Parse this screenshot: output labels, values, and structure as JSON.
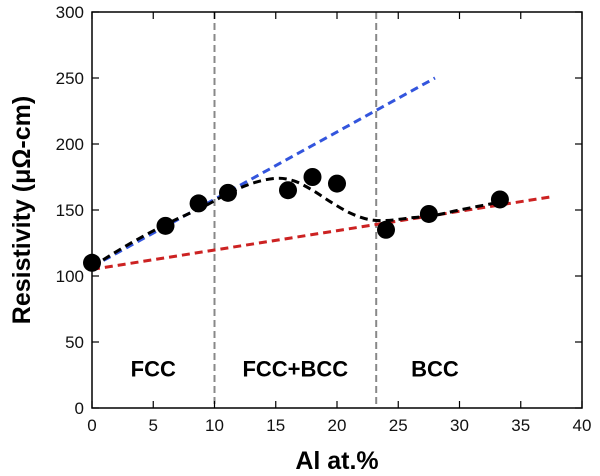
{
  "chart_data": {
    "type": "scatter",
    "title": "",
    "xlabel": "Al at.%",
    "ylabel": "Resistivity (μΩ-cm)",
    "xlim": [
      0,
      40
    ],
    "ylim": [
      0,
      300
    ],
    "xticks": [
      "0",
      "5",
      "10",
      "15",
      "20",
      "25",
      "30",
      "35",
      "40"
    ],
    "yticks": [
      "0",
      "50",
      "100",
      "150",
      "200",
      "250",
      "300"
    ],
    "grid": false,
    "points": {
      "name": "Measured resistivity",
      "x": [
        0,
        6,
        8.7,
        11.1,
        16,
        18,
        20,
        24,
        27.5,
        33.3
      ],
      "y": [
        110,
        138,
        155,
        163,
        165,
        175,
        170,
        135,
        147,
        158
      ]
    },
    "lines": [
      {
        "name": "Blue dashed trend",
        "color": "#3355dd",
        "style": "dashed",
        "x": [
          0,
          28
        ],
        "y": [
          107,
          250
        ]
      },
      {
        "name": "Red dashed trend",
        "color": "#cc2222",
        "style": "dashed",
        "x": [
          0,
          37.5
        ],
        "y": [
          105,
          160
        ]
      },
      {
        "name": "Black dashed fit",
        "color": "#000000",
        "style": "dashed",
        "x": [
          0,
          3,
          6,
          9,
          11,
          13,
          15,
          16.5,
          18,
          19.5,
          21,
          22.5,
          24,
          26,
          28,
          30,
          33.3
        ],
        "y": [
          107,
          124,
          139,
          152,
          162,
          170,
          174,
          172,
          165,
          156,
          148,
          143,
          142,
          144,
          146,
          150,
          156
        ]
      }
    ],
    "vlines": [
      {
        "name": "FCC boundary",
        "x": 10,
        "color": "#888888",
        "style": "dashed"
      },
      {
        "name": "BCC boundary",
        "x": 23.2,
        "color": "#888888",
        "style": "dashed"
      }
    ],
    "regions": [
      {
        "label": "FCC",
        "x": 5,
        "y": 30
      },
      {
        "label": "FCC+BCC",
        "x": 16.6,
        "y": 30
      },
      {
        "label": "BCC",
        "x": 28,
        "y": 30
      }
    ]
  }
}
